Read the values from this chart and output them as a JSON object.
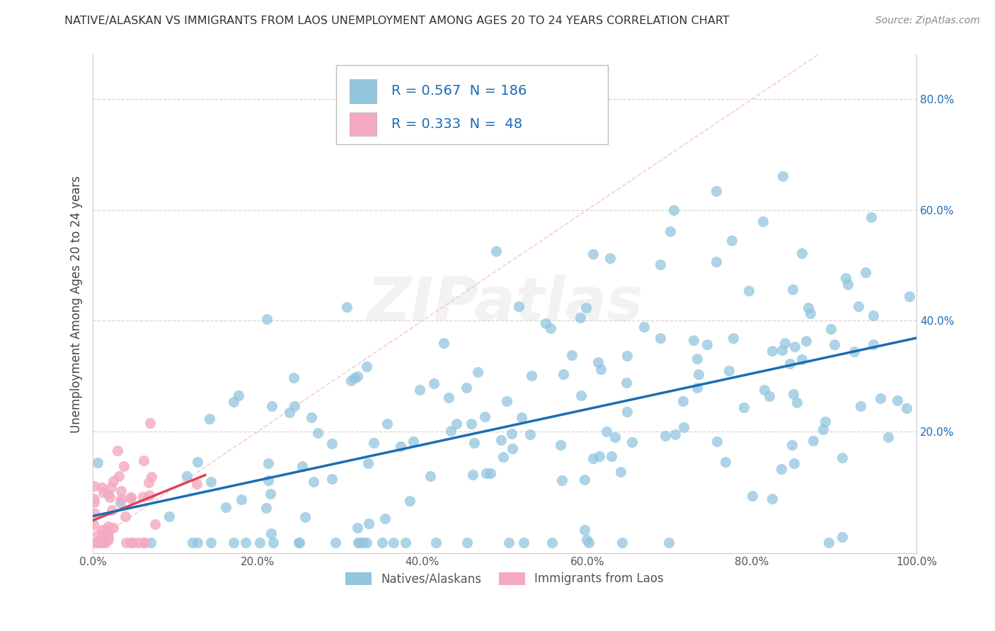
{
  "title": "NATIVE/ALASKAN VS IMMIGRANTS FROM LAOS UNEMPLOYMENT AMONG AGES 20 TO 24 YEARS CORRELATION CHART",
  "source": "Source: ZipAtlas.com",
  "ylabel": "Unemployment Among Ages 20 to 24 years",
  "xlim": [
    0.0,
    1.0
  ],
  "ylim": [
    -0.02,
    0.88
  ],
  "xticks": [
    0.0,
    0.2,
    0.4,
    0.6,
    0.8,
    1.0
  ],
  "xticklabels": [
    "0.0%",
    "20.0%",
    "40.0%",
    "60.0%",
    "80.0%",
    "100.0%"
  ],
  "ytick_positions": [
    0.2,
    0.4,
    0.6,
    0.8
  ],
  "yticklabels": [
    "20.0%",
    "40.0%",
    "60.0%",
    "80.0%"
  ],
  "watermark": "ZIPatlas",
  "blue_color": "#92c5de",
  "pink_color": "#f4a9c0",
  "blue_line_color": "#1a6db5",
  "pink_line_color": "#e0435a",
  "diag_color": "#f4a9c0",
  "grid_color": "#cccccc",
  "R_blue": 0.567,
  "N_blue": 186,
  "R_pink": 0.333,
  "N_pink": 48,
  "legend_label_blue": "Natives/Alaskans",
  "legend_label_pink": "Immigrants from Laos",
  "title_color": "#333333",
  "source_color": "#888888",
  "label_color": "#1a6db5",
  "tick_color": "#1a6db5",
  "background_color": "#ffffff",
  "blue_seed": 12,
  "pink_seed": 7
}
